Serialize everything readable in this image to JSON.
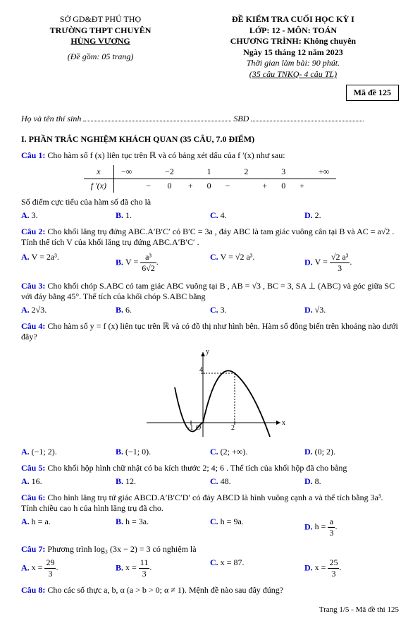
{
  "header": {
    "dept": "SỞ GD&ĐT PHÚ THỌ",
    "school1": "TRƯỜNG THPT CHUYÊN",
    "school2": "HÙNG VƯƠNG",
    "doc_note": "(Đề gồm: 05 trang)",
    "exam_title": "ĐỀ KIỂM TRA CUỐI HỌC KỲ I",
    "class_line": "LỚP: 12 - MÔN: TOÁN",
    "program": "CHƯƠNG TRÌNH: Không chuyên",
    "date": "Ngày 15 tháng 12 năm 2023",
    "duration": "Thời gian làm bài: 90 phút.",
    "format": "(35 câu TNKQ- 4 câu TL)",
    "code": "Mã đề 125"
  },
  "fill": {
    "name_label": "Họ và tên thí sinh",
    "sbd_label": "SBD"
  },
  "section1": "I. PHẦN TRẮC NGHIỆM KHÁCH QUAN (35 CÂU, 7.0 ĐIỂM)",
  "q1": {
    "label": "Câu 1:",
    "text": " Cho hàm số  f (x)  liên tục trên  ℝ  và có bảng xét dấu của  f ′(x)  như sau:",
    "table": {
      "x_row": [
        "x",
        "−∞",
        "",
        "−2",
        "",
        "1",
        "",
        "2",
        "",
        "3",
        "",
        "+∞"
      ],
      "f_row": [
        "f ′(x)",
        "",
        "−",
        "0",
        "+",
        "0",
        "−",
        "",
        "+",
        "0",
        "+",
        ""
      ]
    },
    "stem2": "Số điểm cực tiểu của hàm số đã cho là",
    "ans": {
      "A": "3.",
      "B": "1.",
      "C": "4.",
      "D": "2."
    }
  },
  "q2": {
    "label": "Câu 2:",
    "text": " Cho khối lăng trụ đứng  ABC.A′B′C′  có  B′C = 3a , đáy ABC là tam giác vuông cân tại  B  và  AC = a√2 . Tính thể tích  V  của khối lăng trụ đứng ABC.A′B′C′ .",
    "ans": {
      "A": "V = 2a³.",
      "B_html": "V = <span class='frac'><span class='n'>a³</span><span class='d'>6√2</span></span>.",
      "C": "V = √2 a³.",
      "D_html": "V = <span class='frac'><span class='n'>√2 a³</span><span class='d'>3</span></span>."
    }
  },
  "q3": {
    "label": "Câu 3:",
    "text": " Cho khối chóp  S.ABC  có tam giác ABC  vuông tại  B ,  AB = √3 ,  BC = 3,  SA ⊥ (ABC)  và góc giữa  SC  với đáy bằng  45°. Thể tích của khối chóp  S.ABC  bằng",
    "ans": {
      "A": "2√3.",
      "B": "6.",
      "C": "3.",
      "D": "√3."
    }
  },
  "q4": {
    "label": "Câu 4:",
    "text": " Cho hàm số  y = f (x)  liên tục trên  ℝ  và có đồ thị như hình bên. Hàm số đồng biến trên khoảng nào dưới đây?",
    "ans": {
      "A": "(−1; 2).",
      "B": "(−1; 0).",
      "C": "(2; +∞).",
      "D": "(0; 2)."
    }
  },
  "q5": {
    "label": "Câu 5:",
    "text": " Cho khối hộp hình chữ nhật có ba kích thước  2; 4; 6 . Thể tích của khối hộp đã cho bằng",
    "ans": {
      "A": "16.",
      "B": "12.",
      "C": "48.",
      "D": "8."
    }
  },
  "q6": {
    "label": "Câu 6:",
    "text": " Cho hình lăng trụ tứ giác  ABCD.A′B′C′D′  có đáy  ABCD  là hình vuông cạnh  a  và thể tích bằng 3a³. Tính chiều cao  h  của hình lăng trụ đã cho.",
    "ans": {
      "A": "h = a.",
      "B": "h = 3a.",
      "C": "h = 9a.",
      "D_html": "h = <span class='frac'><span class='n'>a</span><span class='d'>3</span></span>."
    }
  },
  "q7": {
    "label": "Câu 7:",
    "text": " Phương trình  log₃ (3x − 2) = 3  có nghiệm là",
    "ans": {
      "A_html": "x = <span class='frac'><span class='n'>29</span><span class='d'>3</span></span>.",
      "B_html": "x = <span class='frac'><span class='n'>11</span><span class='d'>3</span></span>.",
      "C": "x = 87.",
      "D_html": "x = <span class='frac'><span class='n'>25</span><span class='d'>3</span></span>."
    }
  },
  "q8": {
    "label": "Câu 8:",
    "text": " Cho các số thực  a, b, α  (a > b > 0; α ≠ 1).  Mệnh đề nào sau đây đúng?"
  },
  "footer": "Trang 1/5 - Mã đề thi 125"
}
